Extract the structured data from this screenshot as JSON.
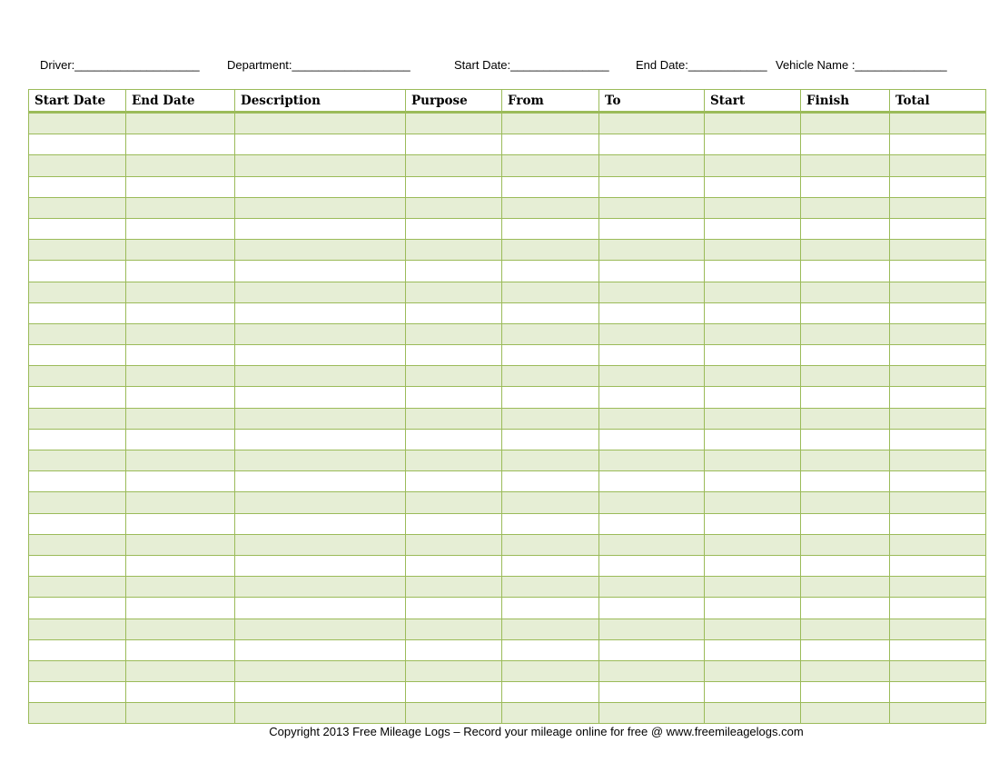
{
  "header_fields": [
    {
      "label": "Driver:",
      "line": "___________________"
    },
    {
      "label": "Department:",
      "line": "__________________"
    },
    {
      "label": "Start Date:",
      "line": "_______________"
    },
    {
      "label": "End Date:",
      "line": "____________"
    },
    {
      "label": "Vehicle Name :",
      "line": "______________"
    }
  ],
  "table": {
    "columns": [
      "Start Date",
      "End Date",
      "Description",
      "Purpose",
      "From",
      "To",
      "Start",
      "Finish",
      "Total"
    ],
    "row_count": 29,
    "colors": {
      "border": "#9bbb59",
      "alt_fill": "#e6eed5"
    }
  },
  "footer": "Copyright 2013 Free Mileage Logs – Record your mileage online for free @ www.freemileagelogs.com"
}
